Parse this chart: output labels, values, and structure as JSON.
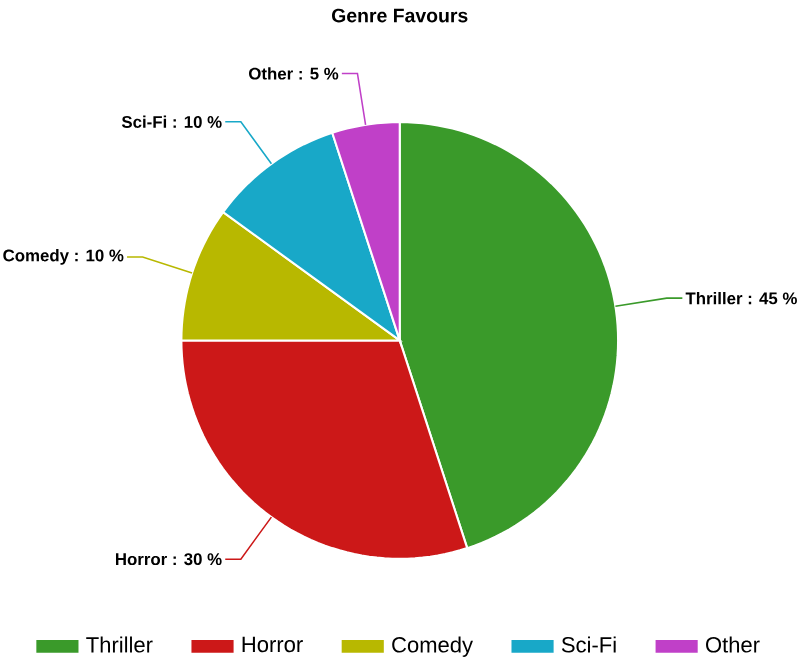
{
  "chart_data": {
    "type": "pie",
    "title": "Genre Favours",
    "categories": [
      "Thriller",
      "Horror",
      "Comedy",
      "Sci-Fi",
      "Other"
    ],
    "values": [
      45,
      30,
      10,
      10,
      5
    ],
    "value_labels": [
      "Thriller : 45 %",
      "Horror : 30 %",
      "Comedy : 10 %",
      "Sci-Fi : 10 %",
      "Other : 5 %"
    ],
    "colors": [
      "#3a9a2a",
      "#cc1818",
      "#b8b800",
      "#18a8c8",
      "#c040c8"
    ],
    "legend": "bottom"
  }
}
